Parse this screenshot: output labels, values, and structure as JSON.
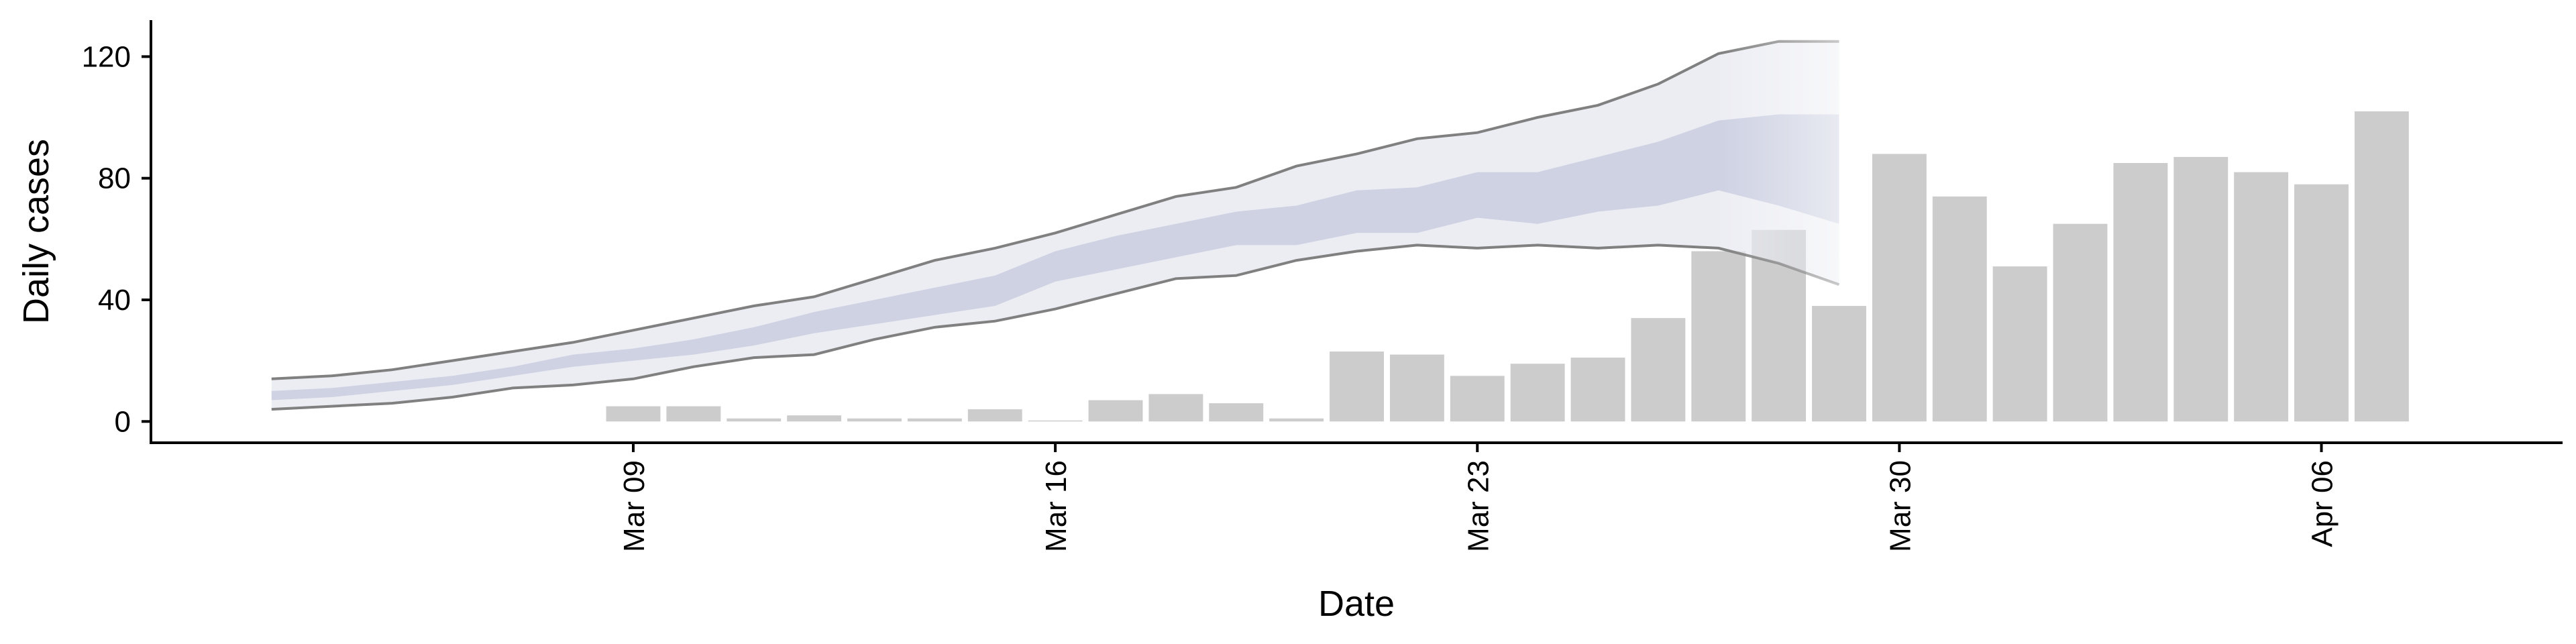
{
  "chart_data": {
    "type": "bar",
    "xlabel": "Date",
    "ylabel": "Daily cases",
    "ylim": [
      -7,
      132
    ],
    "yticks": [
      0,
      40,
      80,
      120
    ],
    "xticks": [
      {
        "date": "2020-03-09",
        "label": "Mar 09"
      },
      {
        "date": "2020-03-16",
        "label": "Mar 16"
      },
      {
        "date": "2020-03-23",
        "label": "Mar 23"
      },
      {
        "date": "2020-03-30",
        "label": "Mar 30"
      },
      {
        "date": "2020-04-06",
        "label": "Apr 06"
      }
    ],
    "xlim": [
      "2020-03-01",
      "2020-04-10"
    ],
    "grid": false,
    "legend": "none",
    "colors": {
      "bars": "#cccccc",
      "outer_band": "#e9eaf1",
      "inner_band": "#c9cde0",
      "bounds": "#808080"
    },
    "bars": {
      "dates": [
        "2020-03-09",
        "2020-03-10",
        "2020-03-11",
        "2020-03-12",
        "2020-03-13",
        "2020-03-14",
        "2020-03-15",
        "2020-03-16",
        "2020-03-17",
        "2020-03-18",
        "2020-03-19",
        "2020-03-20",
        "2020-03-21",
        "2020-03-22",
        "2020-03-23",
        "2020-03-24",
        "2020-03-25",
        "2020-03-26",
        "2020-03-27",
        "2020-03-28",
        "2020-03-29",
        "2020-03-30",
        "2020-03-31",
        "2020-04-01",
        "2020-04-02",
        "2020-04-03",
        "2020-04-04",
        "2020-04-05",
        "2020-04-06",
        "2020-04-07"
      ],
      "values": [
        5,
        5,
        1,
        2,
        1,
        1,
        4,
        0,
        7,
        9,
        6,
        1,
        23,
        22,
        15,
        19,
        21,
        34,
        56,
        63,
        38,
        88,
        74,
        51,
        65,
        85,
        87,
        82,
        78,
        102
      ]
    },
    "bands": {
      "dates": [
        "2020-03-03",
        "2020-03-04",
        "2020-03-05",
        "2020-03-06",
        "2020-03-07",
        "2020-03-08",
        "2020-03-09",
        "2020-03-10",
        "2020-03-11",
        "2020-03-12",
        "2020-03-13",
        "2020-03-14",
        "2020-03-15",
        "2020-03-16",
        "2020-03-17",
        "2020-03-18",
        "2020-03-19",
        "2020-03-20",
        "2020-03-21",
        "2020-03-22",
        "2020-03-23",
        "2020-03-24",
        "2020-03-25",
        "2020-03-26",
        "2020-03-27",
        "2020-03-28",
        "2020-03-29"
      ],
      "outer_lower": [
        4,
        5,
        6,
        8,
        11,
        12,
        14,
        18,
        21,
        22,
        27,
        31,
        33,
        37,
        42,
        47,
        48,
        53,
        56,
        58,
        57,
        58,
        57,
        58,
        57,
        52,
        45
      ],
      "outer_upper": [
        14,
        15,
        17,
        20,
        23,
        26,
        30,
        34,
        38,
        41,
        47,
        53,
        57,
        62,
        68,
        74,
        77,
        84,
        88,
        93,
        95,
        100,
        104,
        111,
        121,
        125,
        125
      ],
      "inner_lower": [
        7,
        8,
        10,
        12,
        15,
        18,
        20,
        22,
        25,
        29,
        32,
        35,
        38,
        46,
        50,
        54,
        58,
        58,
        62,
        62,
        67,
        65,
        69,
        71,
        76,
        71,
        65
      ],
      "inner_upper": [
        10,
        11,
        13,
        15,
        18,
        22,
        24,
        27,
        31,
        36,
        40,
        44,
        48,
        56,
        61,
        65,
        69,
        71,
        76,
        77,
        82,
        82,
        87,
        92,
        99,
        101,
        101
      ]
    }
  }
}
